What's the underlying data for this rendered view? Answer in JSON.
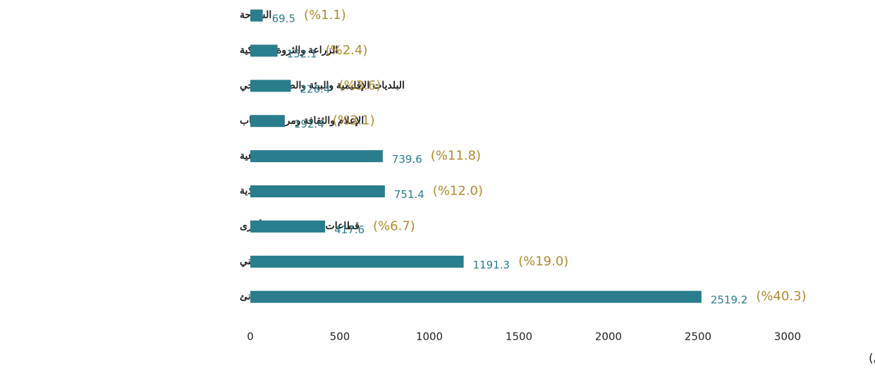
{
  "chart_data": {
    "type": "bar",
    "orientation": "horizontal",
    "categories": [
      "السياحة",
      "الزراعة والثروة السمكية",
      "البلديات الإقليمية والبيئة والصرف الصحي",
      "الإعلام والثقافة ومراكز الشباب",
      "الإسكان والمراكز الإجتماعية",
      "الكهرباء والمياه وسدود التغذية",
      "قطاعات إنتاجية وخدمية أخرى",
      "الصحة والتعليم والتدريب المهني",
      "الطرق والمطارات والموانئ"
    ],
    "values": [
      69.5,
      152.1,
      226.4,
      192.4,
      739.6,
      751.4,
      417.6,
      1191.3,
      2519.2
    ],
    "percent_labels": [
      "(%1.1)",
      "(%2.4)",
      "(%3.6)",
      "(%3.1)",
      "(%11.8)",
      "(%12.0)",
      "(%6.7)",
      "(%19.0)",
      "(%40.3)"
    ],
    "color": "#2a7d8c",
    "percent_color": "#b08a2e",
    "xlim": [
      0,
      3000
    ],
    "xticks": [
      0,
      500,
      1000,
      1500,
      2000,
      2500,
      3000
    ],
    "x_label": "(مليون ريال عماني)"
  }
}
